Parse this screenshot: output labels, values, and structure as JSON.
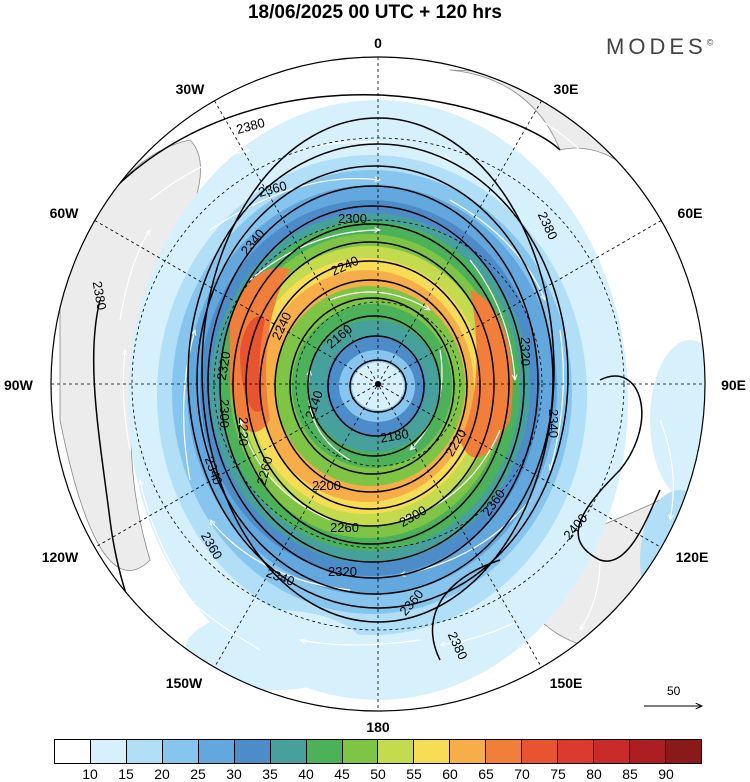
{
  "title": "18/06/2025  00 UTC  + 120 hrs",
  "brand": "MODES",
  "brand_mark": "©",
  "longitude_labels": {
    "top": "0",
    "bottom": "180",
    "left": "90W",
    "right": "90E",
    "w30": "30W",
    "e30": "30E",
    "w60": "60W",
    "e60": "60E",
    "w120": "120W",
    "e120": "120E",
    "w150": "150W",
    "e150": "150E"
  },
  "contour_labels": [
    "2380",
    "2360",
    "2340",
    "2300",
    "2240",
    "2240",
    "2160",
    "2140",
    "2320",
    "2300",
    "2220",
    "2260",
    "2200",
    "2180",
    "2220",
    "2320",
    "2340",
    "2260",
    "2300",
    "2360",
    "2320",
    "2340",
    "2360",
    "2380",
    "2400",
    "2380",
    "2380",
    "2360",
    "2340"
  ],
  "reference_vector": "50",
  "colorbar": {
    "colors": [
      "#ffffff",
      "#d6f0fc",
      "#b0dff7",
      "#86c6ee",
      "#62a8de",
      "#4c8cc8",
      "#46a09b",
      "#4cb25a",
      "#7ec445",
      "#c4db4d",
      "#f6dd55",
      "#f7ae48",
      "#f27f39",
      "#e85430",
      "#dc3a2c",
      "#c92a2a",
      "#ad1e23",
      "#8a1a1a"
    ],
    "labels": [
      "10",
      "15",
      "20",
      "25",
      "30",
      "35",
      "40",
      "45",
      "50",
      "55",
      "60",
      "65",
      "70",
      "75",
      "80",
      "85",
      "90"
    ]
  }
}
